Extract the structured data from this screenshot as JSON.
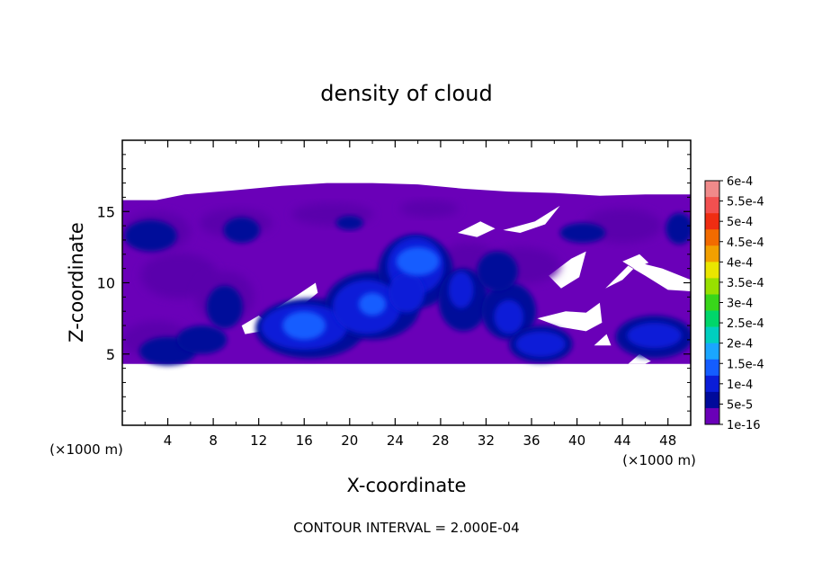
{
  "chart_data": {
    "type": "heatmap",
    "title": "density of cloud",
    "xlabel": "X-coordinate",
    "ylabel": "Z-coordinate",
    "x_unit": "(×1000 m)",
    "z_unit": "(×1000 m)",
    "footer": "CONTOUR INTERVAL = 2.000E-04",
    "xlim": [
      0,
      50
    ],
    "ylim": [
      0,
      20
    ],
    "x_ticks": [
      4,
      8,
      12,
      16,
      20,
      24,
      28,
      32,
      36,
      40,
      44,
      48
    ],
    "y_ticks": [
      5,
      10,
      15
    ],
    "colorbar": {
      "labels": [
        "6e-4",
        "5.5e-4",
        "5e-4",
        "4.5e-4",
        "4e-4",
        "3.5e-4",
        "3e-4",
        "2.5e-4",
        "2e-4",
        "1.5e-4",
        "1e-4",
        "5e-5",
        "1e-16"
      ],
      "colors": [
        "#f08a8a",
        "#f25050",
        "#ef2d12",
        "#f26b00",
        "#f2a000",
        "#eae600",
        "#98e000",
        "#38d61a",
        "#00d66a",
        "#00cfbf",
        "#1aa6ff",
        "#145dff",
        "#0a1dd8",
        "#000a9a",
        "#6a00b8"
      ]
    },
    "field": {
      "description_levels": [
        "1e-16",
        "5e-5",
        "1e-4",
        "1.5e-4"
      ],
      "cloud_base_z": 4.3,
      "cloud_top_z": 17.0,
      "peak_value": 0.00015,
      "cores": [
        {
          "x": 16,
          "z": 7,
          "value": 0.00015
        },
        {
          "x": 22,
          "z": 8.5,
          "value": 0.00012
        },
        {
          "x": 26,
          "z": 11.5,
          "value": 0.00014
        },
        {
          "x": 37,
          "z": 5.8,
          "value": 0.0001
        },
        {
          "x": 47,
          "z": 6.2,
          "value": 9e-05
        }
      ]
    }
  }
}
